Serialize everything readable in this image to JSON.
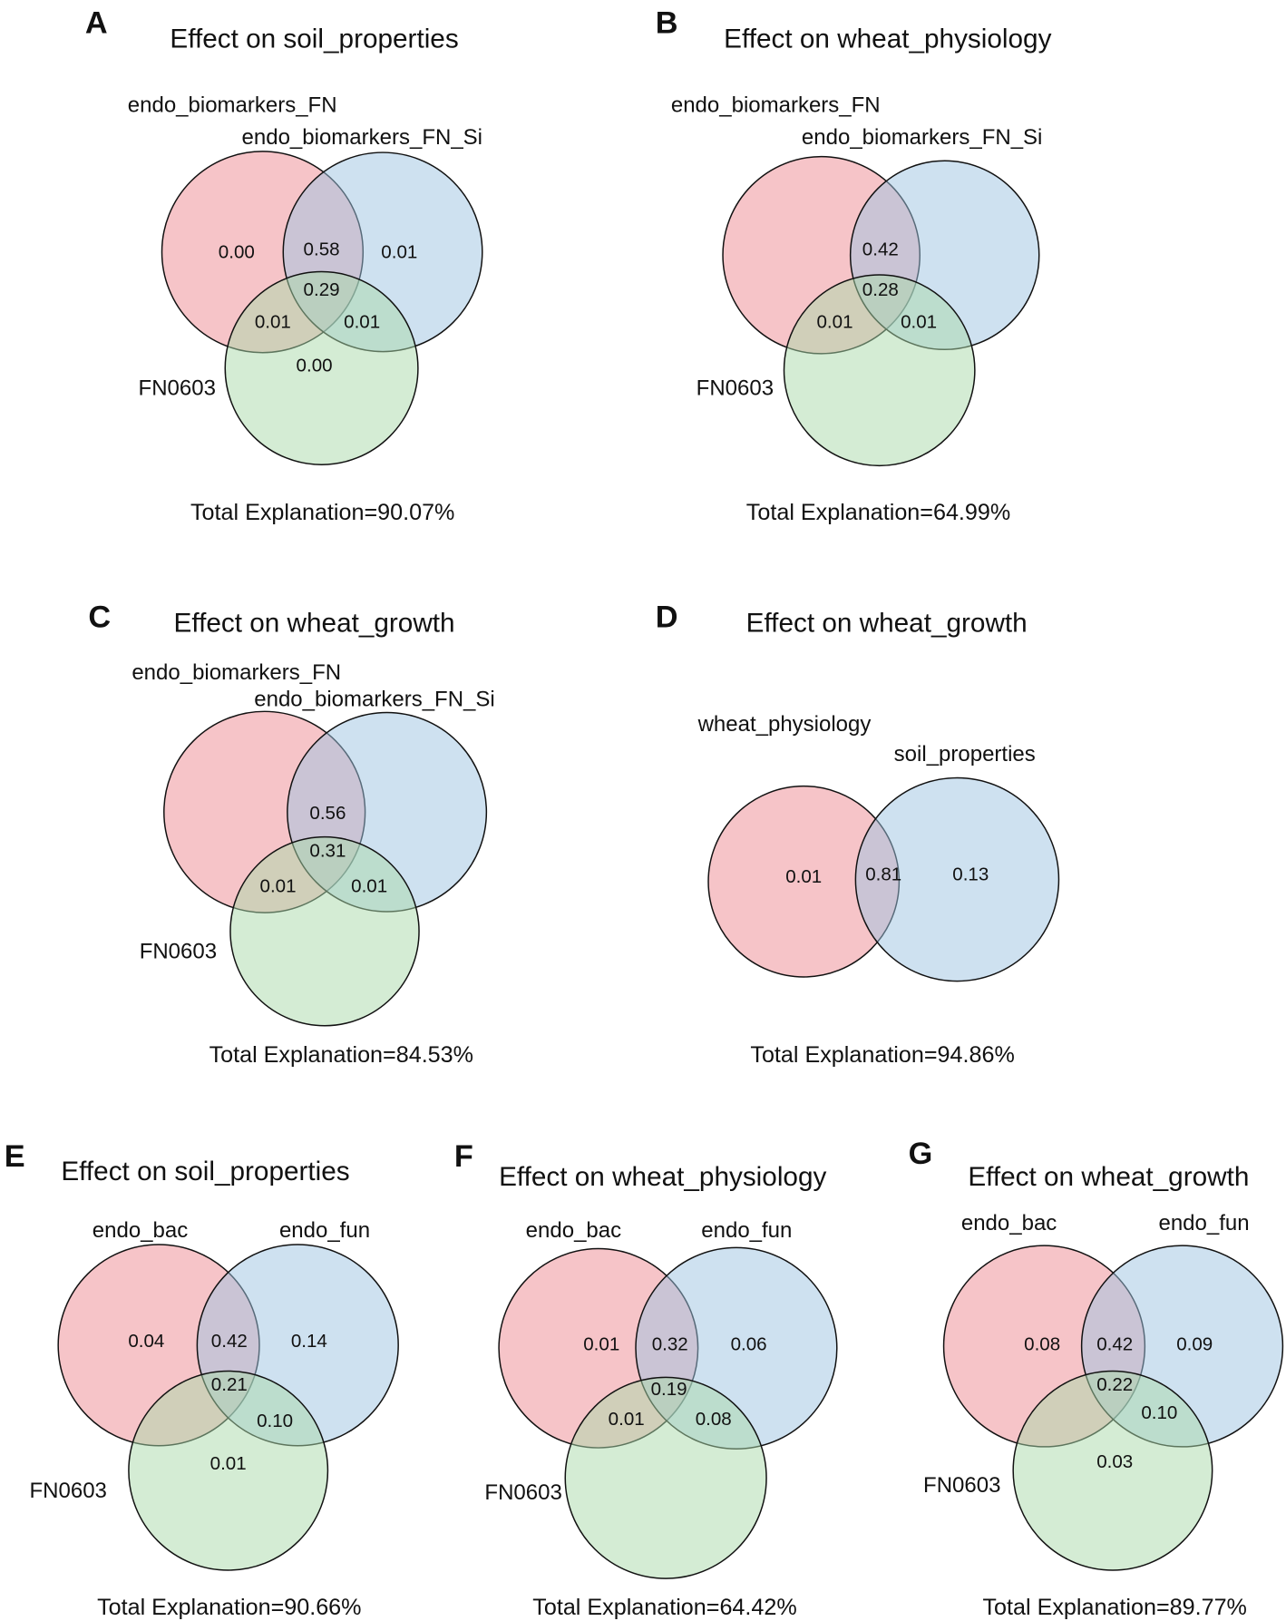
{
  "colors": {
    "set1": "#ee8a92",
    "set2": "#9dc3e2",
    "set3": "#a9d9aa"
  },
  "panels": [
    {
      "letter": "A",
      "title": "Effect on soil_properties",
      "sets": [
        "endo_biomarkers_FN",
        "endo_biomarkers_FN_Si",
        "FN0603"
      ],
      "values": {
        "only1": "0.00",
        "s12": "0.58",
        "only2": "0.01",
        "s123": "0.29",
        "s13": "0.01",
        "s23": "0.01",
        "only3": "0.00"
      },
      "total": "Total Explanation=90.07%"
    },
    {
      "letter": "B",
      "title": "Effect on wheat_physiology",
      "sets": [
        "endo_biomarkers_FN",
        "endo_biomarkers_FN_Si",
        "FN0603"
      ],
      "values": {
        "s12": "0.42",
        "s123": "0.28",
        "s13": "0.01",
        "s23": "0.01"
      },
      "total": "Total Explanation=64.99%"
    },
    {
      "letter": "C",
      "title": "Effect on wheat_growth",
      "sets": [
        "endo_biomarkers_FN",
        "endo_biomarkers_FN_Si",
        "FN0603"
      ],
      "values": {
        "s12": "0.56",
        "s123": "0.31",
        "s13": "0.01",
        "s23": "0.01"
      },
      "total": "Total Explanation=84.53%"
    },
    {
      "letter": "D",
      "title": "Effect on wheat_growth",
      "sets": [
        "wheat_physiology",
        "soil_properties"
      ],
      "values": {
        "only1": "0.01",
        "s12": "0.81",
        "only2": "0.13"
      },
      "total": "Total Explanation=94.86%"
    },
    {
      "letter": "E",
      "title": "Effect on soil_properties",
      "sets": [
        "endo_bac",
        "endo_fun",
        "FN0603"
      ],
      "values": {
        "only1": "0.04",
        "s12": "0.42",
        "only2": "0.14",
        "s123": "0.21",
        "s23": "0.10",
        "only3": "0.01"
      },
      "total": "Total Explanation=90.66%"
    },
    {
      "letter": "F",
      "title": "Effect on wheat_physiology",
      "sets": [
        "endo_bac",
        "endo_fun",
        "FN0603"
      ],
      "values": {
        "only1": "0.01",
        "s12": "0.32",
        "only2": "0.06",
        "s123": "0.19",
        "s13": "0.01",
        "s23": "0.08"
      },
      "total": "Total Explanation=64.42%"
    },
    {
      "letter": "G",
      "title": "Effect on wheat_growth",
      "sets": [
        "endo_bac",
        "endo_fun",
        "FN0603"
      ],
      "values": {
        "only1": "0.08",
        "s12": "0.42",
        "only2": "0.09",
        "s123": "0.22",
        "s23": "0.10",
        "only3": "0.03"
      },
      "total": "Total Explanation=89.77%"
    }
  ]
}
